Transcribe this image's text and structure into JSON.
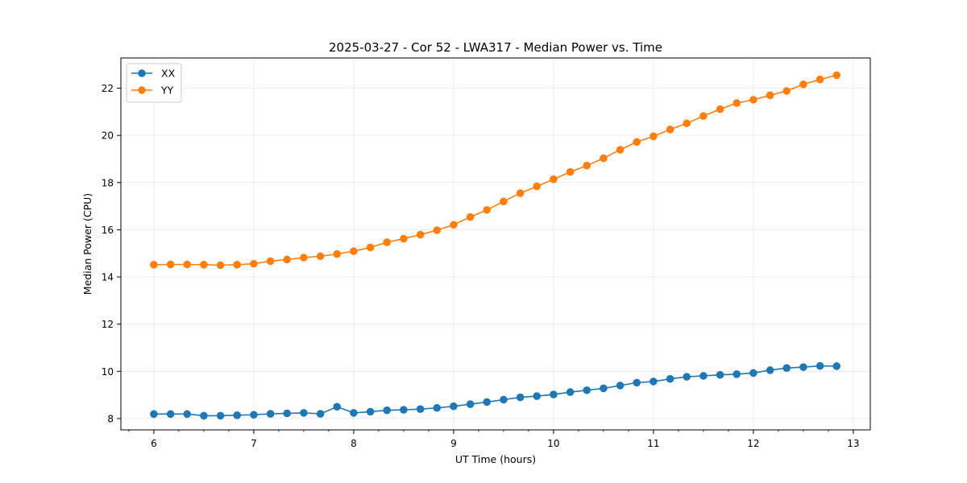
{
  "chart_data": {
    "type": "line",
    "title": "2025-03-27 - Cor 52 - LWA317 - Median Power vs. Time",
    "xlabel": "UT Time (hours)",
    "ylabel": "Median Power (CPU)",
    "xlim": [
      5.67,
      13.17
    ],
    "ylim": [
      7.52,
      23.28
    ],
    "xticks": [
      6,
      7,
      8,
      9,
      10,
      11,
      12,
      13
    ],
    "yticks": [
      8,
      10,
      12,
      14,
      16,
      18,
      20,
      22
    ],
    "grid": true,
    "legend_position": "upper-left",
    "x": [
      6.0,
      6.167,
      6.333,
      6.5,
      6.667,
      6.833,
      7.0,
      7.167,
      7.333,
      7.5,
      7.667,
      7.833,
      8.0,
      8.167,
      8.333,
      8.5,
      8.667,
      8.833,
      9.0,
      9.167,
      9.333,
      9.5,
      9.667,
      9.833,
      10.0,
      10.167,
      10.333,
      10.5,
      10.667,
      10.833,
      11.0,
      11.167,
      11.333,
      11.5,
      11.667,
      11.833,
      12.0,
      12.167,
      12.333,
      12.5,
      12.667,
      12.833
    ],
    "series": [
      {
        "name": "XX",
        "color": "#1f77b4",
        "values": [
          8.19,
          8.19,
          8.19,
          8.12,
          8.12,
          8.14,
          8.16,
          8.2,
          8.22,
          8.24,
          8.2,
          8.5,
          8.24,
          8.29,
          8.35,
          8.37,
          8.4,
          8.45,
          8.52,
          8.61,
          8.7,
          8.8,
          8.9,
          8.95,
          9.02,
          9.12,
          9.2,
          9.28,
          9.4,
          9.52,
          9.57,
          9.68,
          9.77,
          9.81,
          9.85,
          9.88,
          9.93,
          10.05,
          10.14,
          10.18,
          10.23,
          10.22
        ]
      },
      {
        "name": "YY",
        "color": "#ff7f0e",
        "values": [
          14.52,
          14.53,
          14.53,
          14.52,
          14.5,
          14.52,
          14.56,
          14.67,
          14.74,
          14.82,
          14.88,
          14.97,
          15.09,
          15.25,
          15.47,
          15.62,
          15.79,
          15.98,
          16.21,
          16.54,
          16.84,
          17.2,
          17.55,
          17.84,
          18.14,
          18.45,
          18.72,
          19.03,
          19.39,
          19.72,
          19.96,
          20.25,
          20.51,
          20.82,
          21.11,
          21.37,
          21.51,
          21.7,
          21.88,
          22.16,
          22.37,
          22.55
        ]
      }
    ]
  }
}
